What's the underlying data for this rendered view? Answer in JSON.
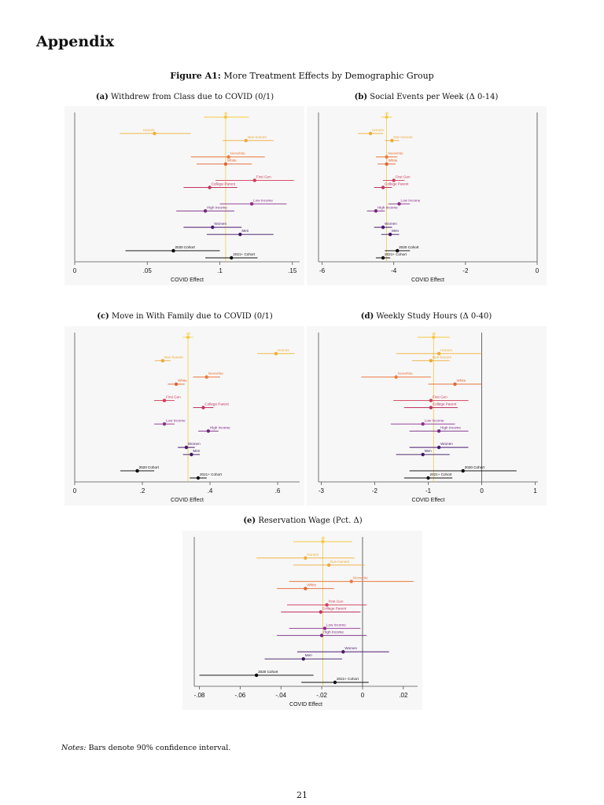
{
  "heading": "Appendix",
  "figure": {
    "label": "Figure A1:",
    "title": "More Treatment Effects by Demographic Group"
  },
  "colors": {
    "all": "#f6c945",
    "honors": "#f0ae33",
    "nonhonors": "#ebaa3a",
    "nonwhite": "#ea7b42",
    "white": "#e2652f",
    "firstgen": "#d13d5a",
    "collegeparent": "#c03460",
    "lowincome": "#8d2e8d",
    "highincome": "#76277f",
    "women": "#4a1a6f",
    "men": "#3a1660",
    "cohort2020": "#000000",
    "cohort2021": "#111111",
    "refline": "#f2c94c",
    "zeroline": "#444444",
    "panel_bg": "#f7f7f7"
  },
  "notes": {
    "label": "Notes:",
    "text": "Bars denote 90% confidence interval."
  },
  "page_number": "21",
  "chart_data": [
    {
      "id": "a",
      "type": "scatter",
      "letter": "(a)",
      "title": "Withdrew from Class due to COVID (0/1)",
      "xlabel": "COVID Effect",
      "xlim": [
        0,
        0.155
      ],
      "ticks": [
        0,
        0.05,
        0.1,
        0.15
      ],
      "tick_labels": [
        "0",
        ".05",
        ".1",
        ".15"
      ],
      "ref_line": 0.104,
      "zero_line": null,
      "series": [
        {
          "name": "All",
          "key": "all",
          "x": 0.104,
          "lo": 0.089,
          "hi": 0.12,
          "label_side": "center"
        },
        {
          "name": "Honors",
          "key": "honors",
          "x": 0.055,
          "lo": 0.031,
          "hi": 0.08,
          "label_side": "left"
        },
        {
          "name": "Non-honors",
          "key": "nonhonors",
          "x": 0.118,
          "lo": 0.102,
          "hi": 0.137,
          "label_side": "right"
        },
        {
          "name": "Nonwhite",
          "key": "nonwhite",
          "x": 0.106,
          "lo": 0.08,
          "hi": 0.131,
          "label_side": "right"
        },
        {
          "name": "White",
          "key": "white",
          "x": 0.104,
          "lo": 0.084,
          "hi": 0.122,
          "label_side": "right"
        },
        {
          "name": "First Gen",
          "key": "firstgen",
          "x": 0.124,
          "lo": 0.097,
          "hi": 0.151,
          "label_side": "right"
        },
        {
          "name": "College Parent",
          "key": "collegeparent",
          "x": 0.093,
          "lo": 0.075,
          "hi": 0.112,
          "label_side": "right"
        },
        {
          "name": "Low Income",
          "key": "lowincome",
          "x": 0.122,
          "lo": 0.1,
          "hi": 0.146,
          "label_side": "right"
        },
        {
          "name": "High Income",
          "key": "highincome",
          "x": 0.09,
          "lo": 0.07,
          "hi": 0.11,
          "label_side": "right"
        },
        {
          "name": "Women",
          "key": "women",
          "x": 0.095,
          "lo": 0.075,
          "hi": 0.115,
          "label_side": "right"
        },
        {
          "name": "Men",
          "key": "men",
          "x": 0.114,
          "lo": 0.091,
          "hi": 0.137,
          "label_side": "right"
        },
        {
          "name": "2020 Cohort",
          "key": "cohort2020",
          "x": 0.068,
          "lo": 0.035,
          "hi": 0.1,
          "label_side": "right"
        },
        {
          "name": "2021+ Cohort",
          "key": "cohort2021",
          "x": 0.108,
          "lo": 0.09,
          "hi": 0.126,
          "label_side": "right"
        }
      ]
    },
    {
      "id": "b",
      "type": "scatter",
      "letter": "(b)",
      "title": "Social Events per Week (Δ 0-14)",
      "xlabel": "COVID Effect",
      "xlim": [
        -6.1,
        0
      ],
      "ticks": [
        -6,
        -4,
        -2,
        0
      ],
      "tick_labels": [
        "-6",
        "-4",
        "-2",
        "0"
      ],
      "ref_line": -4.2,
      "zero_line": 0,
      "series": [
        {
          "name": "All",
          "key": "all",
          "x": -4.2,
          "lo": -4.35,
          "hi": -4.05,
          "label_side": "center"
        },
        {
          "name": "Honors",
          "key": "honors",
          "x": -4.65,
          "lo": -5.0,
          "hi": -4.3,
          "label_side": "right"
        },
        {
          "name": "Non-honors",
          "key": "nonhonors",
          "x": -4.05,
          "lo": -4.25,
          "hi": -3.85,
          "label_side": "right"
        },
        {
          "name": "Nonwhite",
          "key": "nonwhite",
          "x": -4.2,
          "lo": -4.5,
          "hi": -3.9,
          "label_side": "right"
        },
        {
          "name": "White",
          "key": "white",
          "x": -4.2,
          "lo": -4.45,
          "hi": -3.95,
          "label_side": "right"
        },
        {
          "name": "First Gen",
          "key": "firstgen",
          "x": -4.0,
          "lo": -4.3,
          "hi": -3.7,
          "label_side": "right"
        },
        {
          "name": "College Parent",
          "key": "collegeparent",
          "x": -4.3,
          "lo": -4.55,
          "hi": -4.05,
          "label_side": "right"
        },
        {
          "name": "Low Income",
          "key": "lowincome",
          "x": -3.85,
          "lo": -4.15,
          "hi": -3.55,
          "label_side": "right"
        },
        {
          "name": "High Income",
          "key": "highincome",
          "x": -4.5,
          "lo": -4.75,
          "hi": -4.25,
          "label_side": "right"
        },
        {
          "name": "Women",
          "key": "women",
          "x": -4.3,
          "lo": -4.55,
          "hi": -4.05,
          "label_side": "right"
        },
        {
          "name": "Men",
          "key": "men",
          "x": -4.1,
          "lo": -4.35,
          "hi": -3.85,
          "label_side": "right"
        },
        {
          "name": "2020 Cohort",
          "key": "cohort2020",
          "x": -3.9,
          "lo": -4.25,
          "hi": -3.55,
          "label_side": "right"
        },
        {
          "name": "2021+ Cohort",
          "key": "cohort2021",
          "x": -4.3,
          "lo": -4.5,
          "hi": -4.1,
          "label_side": "right"
        }
      ]
    },
    {
      "id": "c",
      "type": "scatter",
      "letter": "(c)",
      "title": "Move in With Family due to COVID (0/1)",
      "xlabel": "COVID Effect",
      "xlim": [
        0,
        0.665
      ],
      "ticks": [
        0,
        0.2,
        0.4,
        0.6
      ],
      "tick_labels": [
        "0",
        ".2",
        ".4",
        ".6"
      ],
      "ref_line": 0.335,
      "zero_line": null,
      "series": [
        {
          "name": "All",
          "key": "all",
          "x": 0.335,
          "lo": 0.32,
          "hi": 0.35,
          "label_side": "center"
        },
        {
          "name": "Honors",
          "key": "honors",
          "x": 0.595,
          "lo": 0.54,
          "hi": 0.65,
          "label_side": "right"
        },
        {
          "name": "Non-honors",
          "key": "nonhonors",
          "x": 0.26,
          "lo": 0.237,
          "hi": 0.283,
          "label_side": "right"
        },
        {
          "name": "Nonwhite",
          "key": "nonwhite",
          "x": 0.39,
          "lo": 0.35,
          "hi": 0.43,
          "label_side": "right"
        },
        {
          "name": "White",
          "key": "white",
          "x": 0.3,
          "lo": 0.275,
          "hi": 0.325,
          "label_side": "right"
        },
        {
          "name": "First Gen",
          "key": "firstgen",
          "x": 0.265,
          "lo": 0.235,
          "hi": 0.295,
          "label_side": "right"
        },
        {
          "name": "College Parent",
          "key": "collegeparent",
          "x": 0.38,
          "lo": 0.35,
          "hi": 0.41,
          "label_side": "right"
        },
        {
          "name": "Low Income",
          "key": "lowincome",
          "x": 0.265,
          "lo": 0.235,
          "hi": 0.295,
          "label_side": "right"
        },
        {
          "name": "High Income",
          "key": "highincome",
          "x": 0.395,
          "lo": 0.365,
          "hi": 0.425,
          "label_side": "right"
        },
        {
          "name": "Women",
          "key": "women",
          "x": 0.33,
          "lo": 0.305,
          "hi": 0.355,
          "label_side": "right"
        },
        {
          "name": "Men",
          "key": "men",
          "x": 0.345,
          "lo": 0.32,
          "hi": 0.37,
          "label_side": "right"
        },
        {
          "name": "2020 Cohort",
          "key": "cohort2020",
          "x": 0.185,
          "lo": 0.135,
          "hi": 0.235,
          "label_side": "right"
        },
        {
          "name": "2021+ Cohort",
          "key": "cohort2021",
          "x": 0.365,
          "lo": 0.34,
          "hi": 0.39,
          "label_side": "right"
        }
      ]
    },
    {
      "id": "d",
      "type": "scatter",
      "letter": "(d)",
      "title": "Weekly Study Hours (Δ 0-40)",
      "xlabel": "COVID Effect",
      "xlim": [
        -3.05,
        1.05
      ],
      "ticks": [
        -3,
        -2,
        -1,
        0,
        1
      ],
      "tick_labels": [
        "-3",
        "-2",
        "-1",
        "0",
        "1"
      ],
      "ref_line": -0.9,
      "zero_line": 0,
      "series": [
        {
          "name": "All",
          "key": "all",
          "x": -0.9,
          "lo": -1.2,
          "hi": -0.6,
          "label_side": "center"
        },
        {
          "name": "Honors",
          "key": "honors",
          "x": -0.8,
          "lo": -1.6,
          "hi": 0.0,
          "label_side": "right"
        },
        {
          "name": "Non-honors",
          "key": "nonhonors",
          "x": -0.95,
          "lo": -1.3,
          "hi": -0.6,
          "label_side": "right"
        },
        {
          "name": "Nonwhite",
          "key": "nonwhite",
          "x": -1.6,
          "lo": -2.25,
          "hi": -0.95,
          "label_side": "right"
        },
        {
          "name": "White",
          "key": "white",
          "x": -0.5,
          "lo": -1.0,
          "hi": 0.0,
          "label_side": "right"
        },
        {
          "name": "First Gen",
          "key": "firstgen",
          "x": -0.95,
          "lo": -1.65,
          "hi": -0.25,
          "label_side": "right"
        },
        {
          "name": "College Parent",
          "key": "collegeparent",
          "x": -0.95,
          "lo": -1.45,
          "hi": -0.45,
          "label_side": "right"
        },
        {
          "name": "Low Income",
          "key": "lowincome",
          "x": -1.1,
          "lo": -1.7,
          "hi": -0.5,
          "label_side": "right"
        },
        {
          "name": "High Income",
          "key": "highincome",
          "x": -0.8,
          "lo": -1.35,
          "hi": -0.25,
          "label_side": "right"
        },
        {
          "name": "Women",
          "key": "women",
          "x": -0.8,
          "lo": -1.35,
          "hi": -0.25,
          "label_side": "right"
        },
        {
          "name": "Men",
          "key": "men",
          "x": -1.1,
          "lo": -1.6,
          "hi": -0.6,
          "label_side": "right"
        },
        {
          "name": "2020 Cohort",
          "key": "cohort2020",
          "x": -0.35,
          "lo": -1.35,
          "hi": 0.65,
          "label_side": "right"
        },
        {
          "name": "2021+ Cohort",
          "key": "cohort2021",
          "x": -1.0,
          "lo": -1.45,
          "hi": -0.55,
          "label_side": "right"
        }
      ]
    },
    {
      "id": "e",
      "type": "scatter",
      "letter": "(e)",
      "title": "Reservation Wage (Pct. Δ)",
      "xlabel": "COVID Effect",
      "xlim": [
        -0.0825,
        0.027
      ],
      "ticks": [
        -0.08,
        -0.06,
        -0.04,
        -0.02,
        0,
        0.02
      ],
      "tick_labels": [
        "-.08",
        "-.06",
        "-.04",
        "-.02",
        "0",
        ".02"
      ],
      "ref_line": -0.0195,
      "zero_line": 0,
      "series": [
        {
          "name": "All",
          "key": "all",
          "x": -0.0195,
          "lo": -0.034,
          "hi": -0.005,
          "label_side": "center"
        },
        {
          "name": "Honors",
          "key": "honors",
          "x": -0.028,
          "lo": -0.052,
          "hi": -0.004,
          "label_side": "right"
        },
        {
          "name": "Non-honors",
          "key": "nonhonors",
          "x": -0.0165,
          "lo": -0.034,
          "hi": 0.001,
          "label_side": "right"
        },
        {
          "name": "Nonwhite",
          "key": "nonwhite",
          "x": -0.0055,
          "lo": -0.036,
          "hi": 0.025,
          "label_side": "right"
        },
        {
          "name": "White",
          "key": "white",
          "x": -0.028,
          "lo": -0.042,
          "hi": -0.014,
          "label_side": "right"
        },
        {
          "name": "First Gen",
          "key": "firstgen",
          "x": -0.0175,
          "lo": -0.037,
          "hi": 0.002,
          "label_side": "right"
        },
        {
          "name": "College Parent",
          "key": "collegeparent",
          "x": -0.0205,
          "lo": -0.04,
          "hi": -0.001,
          "label_side": "right"
        },
        {
          "name": "Low Income",
          "key": "lowincome",
          "x": -0.0185,
          "lo": -0.036,
          "hi": -0.001,
          "label_side": "right"
        },
        {
          "name": "High Income",
          "key": "highincome",
          "x": -0.02,
          "lo": -0.042,
          "hi": 0.002,
          "label_side": "right"
        },
        {
          "name": "Women",
          "key": "women",
          "x": -0.0095,
          "lo": -0.032,
          "hi": 0.013,
          "label_side": "right"
        },
        {
          "name": "Men",
          "key": "men",
          "x": -0.029,
          "lo": -0.048,
          "hi": -0.01,
          "label_side": "right"
        },
        {
          "name": "2020 Cohort",
          "key": "cohort2020",
          "x": -0.052,
          "lo": -0.08,
          "hi": -0.024,
          "label_side": "right"
        },
        {
          "name": "2021+ Cohort",
          "key": "cohort2021",
          "x": -0.0135,
          "lo": -0.03,
          "hi": 0.003,
          "label_side": "right"
        }
      ]
    }
  ]
}
